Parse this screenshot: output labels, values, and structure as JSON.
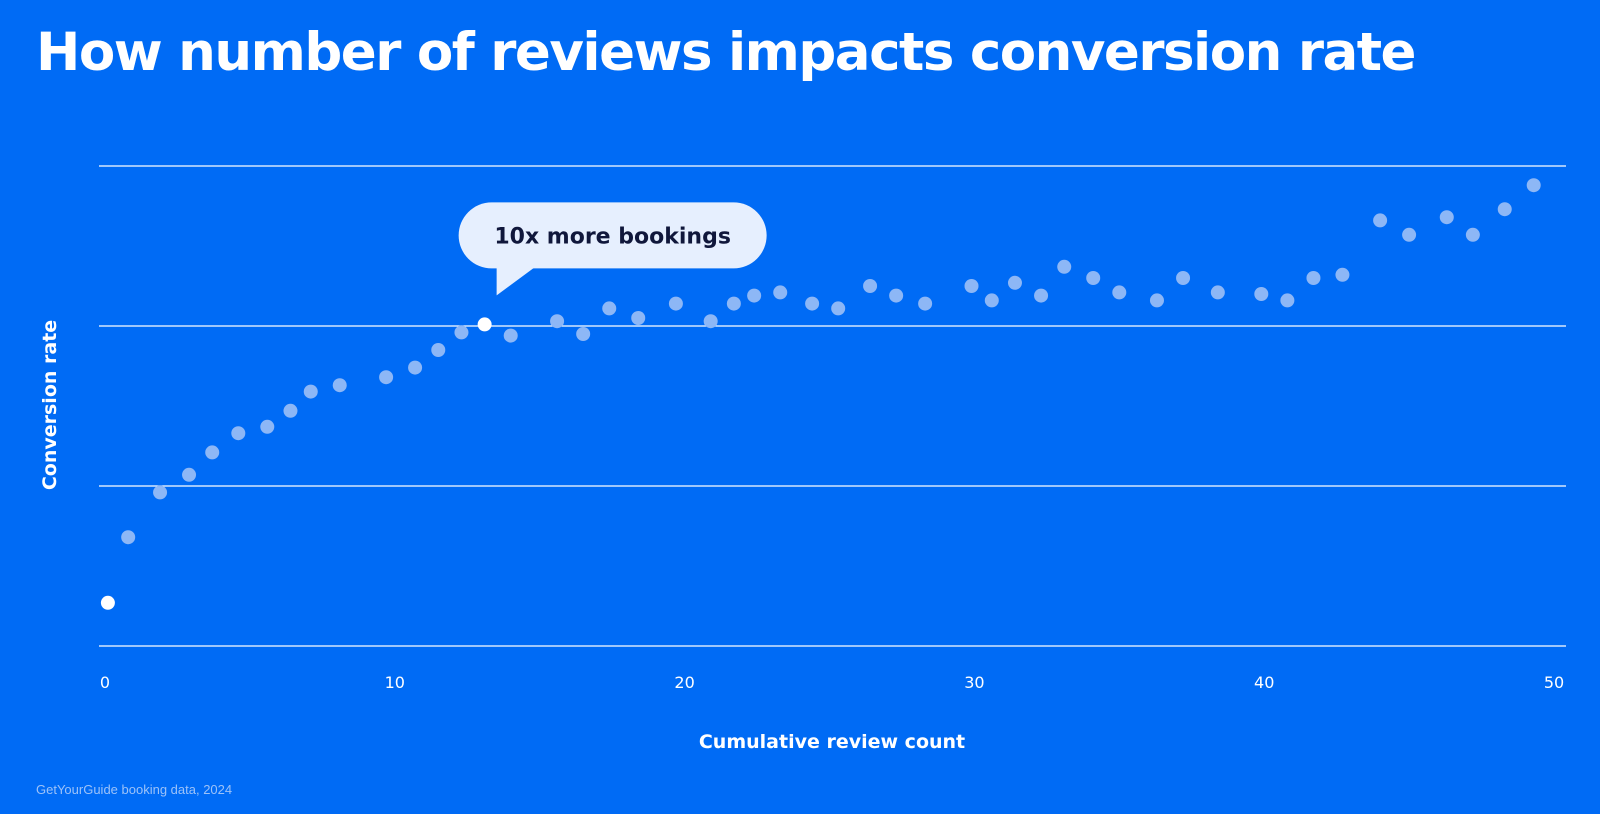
{
  "chart_data": {
    "type": "scatter",
    "title": "How number of reviews impacts conversion rate",
    "xlabel": "Cumulative review count",
    "ylabel": "Conversion rate",
    "xlim": [
      0,
      50
    ],
    "xticks": [
      "0",
      "10",
      "20",
      "30",
      "40",
      "50"
    ],
    "ylim": [
      0,
      3
    ],
    "y_tick_labels_shown": false,
    "grid": true,
    "highlight_color": "#FFFFFF",
    "point_color": "#8DB7F6",
    "background_color": "#006BF5",
    "callout_color": "#E6EFFE",
    "annotation": {
      "text": "10x more bookings",
      "x": 13.1
    },
    "points": [
      {
        "x": 0.1,
        "y": 0.27,
        "highlight": true
      },
      {
        "x": 0.8,
        "y": 0.68
      },
      {
        "x": 1.9,
        "y": 0.96
      },
      {
        "x": 2.9,
        "y": 1.07
      },
      {
        "x": 3.7,
        "y": 1.21
      },
      {
        "x": 4.6,
        "y": 1.33
      },
      {
        "x": 5.6,
        "y": 1.37
      },
      {
        "x": 6.4,
        "y": 1.47
      },
      {
        "x": 7.1,
        "y": 1.59
      },
      {
        "x": 8.1,
        "y": 1.63
      },
      {
        "x": 9.7,
        "y": 1.68
      },
      {
        "x": 10.7,
        "y": 1.74
      },
      {
        "x": 11.5,
        "y": 1.85
      },
      {
        "x": 12.3,
        "y": 1.96
      },
      {
        "x": 13.1,
        "y": 2.01,
        "highlight": true
      },
      {
        "x": 14.0,
        "y": 1.94
      },
      {
        "x": 15.6,
        "y": 2.03
      },
      {
        "x": 16.5,
        "y": 1.95
      },
      {
        "x": 17.4,
        "y": 2.11
      },
      {
        "x": 18.4,
        "y": 2.05
      },
      {
        "x": 19.7,
        "y": 2.14
      },
      {
        "x": 20.9,
        "y": 2.03
      },
      {
        "x": 21.7,
        "y": 2.14
      },
      {
        "x": 22.4,
        "y": 2.19
      },
      {
        "x": 23.3,
        "y": 2.21
      },
      {
        "x": 24.4,
        "y": 2.14
      },
      {
        "x": 25.3,
        "y": 2.11
      },
      {
        "x": 26.4,
        "y": 2.25
      },
      {
        "x": 27.3,
        "y": 2.19
      },
      {
        "x": 28.3,
        "y": 2.14
      },
      {
        "x": 29.9,
        "y": 2.25
      },
      {
        "x": 30.6,
        "y": 2.16
      },
      {
        "x": 31.4,
        "y": 2.27
      },
      {
        "x": 32.3,
        "y": 2.19
      },
      {
        "x": 33.1,
        "y": 2.37
      },
      {
        "x": 34.1,
        "y": 2.3
      },
      {
        "x": 35.0,
        "y": 2.21
      },
      {
        "x": 36.3,
        "y": 2.16
      },
      {
        "x": 37.2,
        "y": 2.3
      },
      {
        "x": 38.4,
        "y": 2.21
      },
      {
        "x": 39.9,
        "y": 2.2
      },
      {
        "x": 40.8,
        "y": 2.16
      },
      {
        "x": 41.7,
        "y": 2.3
      },
      {
        "x": 42.7,
        "y": 2.32
      },
      {
        "x": 44.0,
        "y": 2.66
      },
      {
        "x": 45.0,
        "y": 2.57
      },
      {
        "x": 46.3,
        "y": 2.68
      },
      {
        "x": 47.2,
        "y": 2.57
      },
      {
        "x": 48.3,
        "y": 2.73
      },
      {
        "x": 49.3,
        "y": 2.88
      }
    ]
  },
  "source_note": "GetYourGuide booking data, 2024"
}
